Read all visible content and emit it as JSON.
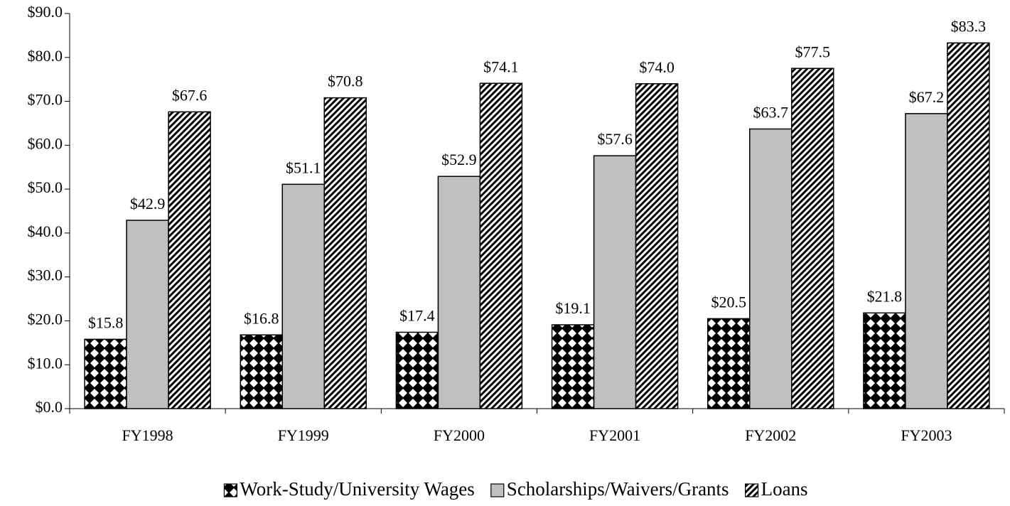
{
  "chart_data": {
    "type": "bar",
    "categories": [
      "FY1998",
      "FY1999",
      "FY2000",
      "FY2001",
      "FY2002",
      "FY2003"
    ],
    "series": [
      {
        "name": "Work-Study/University Wages",
        "color": "#000000",
        "pattern": "checker",
        "values": [
          15.8,
          16.8,
          17.4,
          19.1,
          20.5,
          21.8
        ],
        "value_labels": [
          "$15.8",
          "$16.8",
          "$17.4",
          "$19.1",
          "$20.5",
          "$21.8"
        ]
      },
      {
        "name": "Scholarships/Waivers/Grants",
        "color": "#c0c0c0",
        "pattern": "solid",
        "values": [
          42.9,
          51.1,
          52.9,
          57.6,
          63.7,
          67.2
        ],
        "value_labels": [
          "$42.9",
          "$51.1",
          "$52.9",
          "$57.6",
          "$63.7",
          "$67.2"
        ]
      },
      {
        "name": "Loans",
        "color": "#000000",
        "pattern": "hatch",
        "values": [
          67.6,
          70.8,
          74.1,
          74.0,
          77.5,
          83.3
        ],
        "value_labels": [
          "$67.6",
          "$70.8",
          "$74.1",
          "$74.0",
          "$77.5",
          "$83.3"
        ]
      }
    ],
    "ylim": [
      0,
      90
    ],
    "yticks": [
      {
        "value": 0,
        "label": "$0.0"
      },
      {
        "value": 10,
        "label": "$10.0"
      },
      {
        "value": 20,
        "label": "$20.0"
      },
      {
        "value": 30,
        "label": "$30.0"
      },
      {
        "value": 40,
        "label": "$40.0"
      },
      {
        "value": 50,
        "label": "$50.0"
      },
      {
        "value": 60,
        "label": "$60.0"
      },
      {
        "value": 70,
        "label": "$70.0"
      },
      {
        "value": 80,
        "label": "$80.0"
      },
      {
        "value": 90,
        "label": "$90.0"
      }
    ],
    "grid": false,
    "legend": "bottom"
  }
}
